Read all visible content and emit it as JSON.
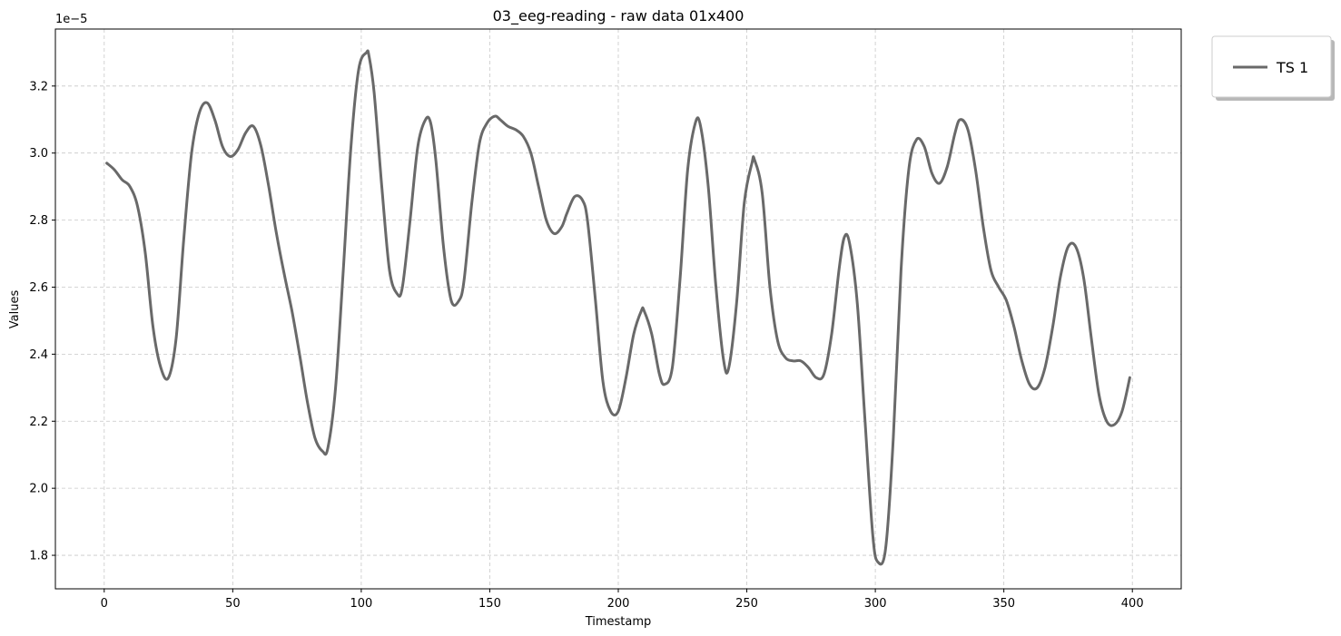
{
  "chart_data": {
    "type": "line",
    "title": "03_eeg-reading - raw data 01x400",
    "xlabel": "Timestamp",
    "ylabel": "Values",
    "y_offset_label": "1e−5",
    "y_scale": 1e-05,
    "xlim": [
      -19,
      419
    ],
    "ylim": [
      1.7,
      3.37
    ],
    "x_ticks": [
      0,
      50,
      100,
      150,
      200,
      250,
      300,
      350,
      400
    ],
    "y_ticks": [
      1.8,
      2.0,
      2.2,
      2.4,
      2.6,
      2.8,
      3.0,
      3.2
    ],
    "y_tick_labels": [
      "1.8",
      "2.0",
      "2.2",
      "2.4",
      "2.6",
      "2.8",
      "3.0",
      "3.2"
    ],
    "grid": true,
    "legend_position": "upper-right-outside",
    "series": [
      {
        "name": "TS 1",
        "color": "#696969",
        "x": [
          1,
          4,
          7,
          10,
          13,
          16,
          19,
          22,
          25,
          28,
          31,
          34,
          37,
          40,
          43,
          46,
          49,
          52,
          55,
          58,
          61,
          64,
          67,
          70,
          73,
          76,
          79,
          82,
          85,
          87,
          90,
          93,
          96,
          99,
          102,
          103,
          105,
          108,
          111,
          114,
          116,
          119,
          122,
          125,
          127,
          129,
          132,
          135,
          138,
          140,
          143,
          146,
          149,
          152,
          154,
          157,
          160,
          163,
          166,
          169,
          172,
          175,
          178,
          180,
          183,
          186,
          188,
          191,
          194,
          197,
          200,
          203,
          206,
          209,
          210,
          213,
          216,
          218,
          221,
          224,
          227,
          230,
          232,
          235,
          238,
          241,
          243,
          246,
          249,
          252,
          253,
          256,
          259,
          262,
          265,
          268,
          271,
          274,
          277,
          280,
          283,
          286,
          288,
          290,
          293,
          296,
          299,
          301,
          304,
          307,
          310,
          313,
          316,
          319,
          322,
          325,
          328,
          331,
          333,
          336,
          339,
          342,
          345,
          348,
          351,
          354,
          357,
          360,
          363,
          366,
          369,
          372,
          375,
          378,
          381,
          384,
          387,
          390,
          393,
          396,
          399
        ],
        "y": [
          2.97,
          2.95,
          2.92,
          2.9,
          2.84,
          2.7,
          2.48,
          2.36,
          2.33,
          2.45,
          2.75,
          3.0,
          3.12,
          3.15,
          3.1,
          3.02,
          2.99,
          3.01,
          3.06,
          3.08,
          3.02,
          2.9,
          2.76,
          2.64,
          2.53,
          2.4,
          2.26,
          2.15,
          2.11,
          2.12,
          2.3,
          2.65,
          3.02,
          3.25,
          3.3,
          3.29,
          3.18,
          2.9,
          2.65,
          2.58,
          2.6,
          2.8,
          3.02,
          3.1,
          3.09,
          2.98,
          2.72,
          2.56,
          2.56,
          2.62,
          2.85,
          3.03,
          3.09,
          3.11,
          3.1,
          3.08,
          3.07,
          3.05,
          3.0,
          2.9,
          2.8,
          2.76,
          2.78,
          2.82,
          2.87,
          2.86,
          2.8,
          2.57,
          2.32,
          2.23,
          2.23,
          2.33,
          2.46,
          2.53,
          2.53,
          2.46,
          2.34,
          2.31,
          2.36,
          2.62,
          2.95,
          3.09,
          3.08,
          2.9,
          2.6,
          2.38,
          2.36,
          2.55,
          2.85,
          2.97,
          2.98,
          2.88,
          2.6,
          2.44,
          2.39,
          2.38,
          2.38,
          2.36,
          2.33,
          2.34,
          2.46,
          2.66,
          2.75,
          2.73,
          2.55,
          2.2,
          1.86,
          1.78,
          1.82,
          2.15,
          2.65,
          2.95,
          3.04,
          3.02,
          2.94,
          2.91,
          2.96,
          3.06,
          3.1,
          3.07,
          2.95,
          2.78,
          2.65,
          2.6,
          2.56,
          2.48,
          2.38,
          2.31,
          2.3,
          2.36,
          2.48,
          2.63,
          2.72,
          2.72,
          2.63,
          2.45,
          2.28,
          2.2,
          2.19,
          2.23,
          2.33
        ]
      }
    ]
  }
}
